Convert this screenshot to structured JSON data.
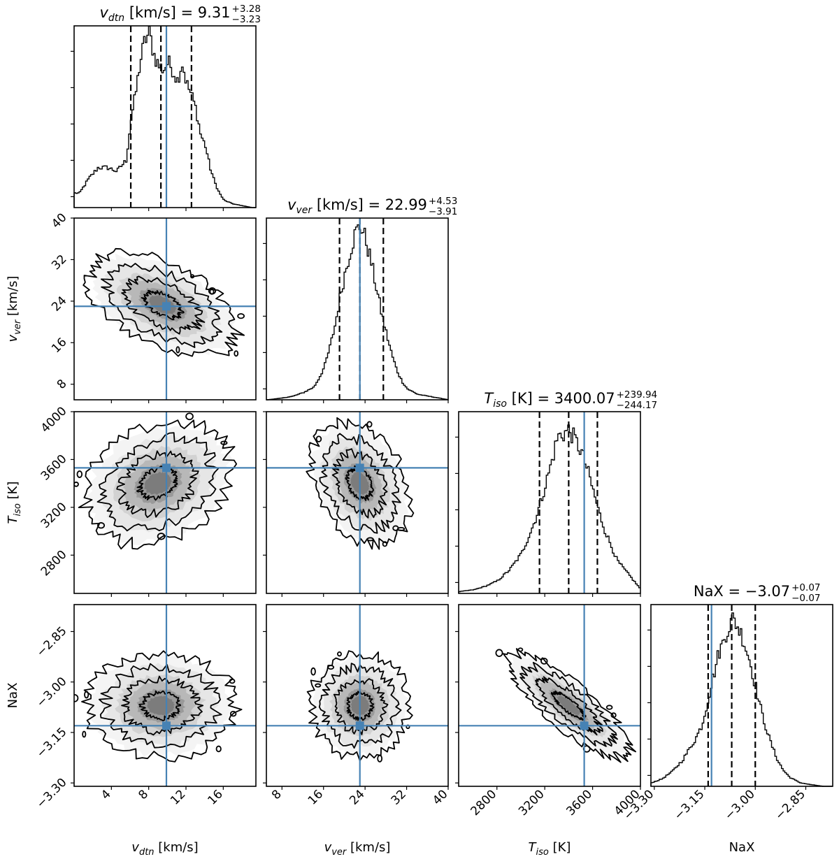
{
  "chart_data": {
    "type": "corner",
    "parameters": [
      {
        "key": "vdtn",
        "symbol": "v",
        "sub": "dtn",
        "unit": "[km/s]",
        "range": [
          0,
          19.5
        ],
        "ticks": [
          4,
          8,
          12,
          16
        ],
        "tick_labels": [
          "4",
          "8",
          "12",
          "16"
        ],
        "truth": 9.9,
        "median": 9.31,
        "upper_err": "+3.28",
        "lower_err": "−3.23",
        "median_str": "9.31",
        "q16": 6.08,
        "q50": 9.31,
        "q84": 12.59
      },
      {
        "key": "vver",
        "symbol": "v",
        "sub": "ver",
        "unit": "[km/s]",
        "range": [
          5,
          40
        ],
        "ticks": [
          8,
          16,
          24,
          32,
          40
        ],
        "tick_labels": [
          "8",
          "16",
          "24",
          "32",
          "40"
        ],
        "truth": 23.0,
        "median": 22.99,
        "upper_err": "+4.53",
        "lower_err": "−3.91",
        "median_str": "22.99",
        "q16": 19.08,
        "q50": 22.99,
        "q84": 27.52
      },
      {
        "key": "Tiso",
        "symbol": "T",
        "sub": "iso",
        "unit": "[K]",
        "range": [
          2480,
          4000
        ],
        "ticks": [
          2800,
          3200,
          3600,
          4000
        ],
        "tick_labels": [
          "2800",
          "3200",
          "3600",
          "4000"
        ],
        "truth": 3530,
        "median": 3400.07,
        "upper_err": "+239.94",
        "lower_err": "−244.17",
        "median_str": "3400.07",
        "q16": 3155.9,
        "q50": 3400.07,
        "q84": 3640.0
      },
      {
        "key": "NaX",
        "symbol": "NaX",
        "sub": "",
        "unit": "",
        "range": [
          -3.31,
          -2.77
        ],
        "ticks": [
          -3.3,
          -3.15,
          -3.0,
          -2.85
        ],
        "tick_labels": [
          "−3.30",
          "−3.15",
          "−3.00",
          "−2.85"
        ],
        "truth": -3.13,
        "median": -3.07,
        "upper_err": "+0.07",
        "lower_err": "−0.07",
        "median_str": "−3.07",
        "q16": -3.14,
        "q50": -3.07,
        "q84": -3.0
      }
    ],
    "titles": [
      "v_dtn [km/s] = 9.31 +3.28 −3.23",
      "v_ver [km/s] = 22.99 +4.53 −3.91",
      "T_iso [K] = 3400.07 +239.94 −244.17",
      "NaX = −3.07 +0.07 −0.07"
    ],
    "xlabels": [
      "v_dtn [km/s]",
      "v_ver [km/s]",
      "T_iso [K]",
      "NaX"
    ],
    "ylabels": [
      "v_ver [km/s]",
      "T_iso [K]",
      "NaX"
    ],
    "histograms": {
      "vdtn": {
        "x": [
          0.5,
          1.5,
          2.5,
          3.5,
          4.5,
          5.5,
          6.0,
          6.5,
          7.0,
          7.5,
          8.0,
          8.5,
          9.0,
          9.5,
          10.0,
          10.5,
          11.0,
          11.5,
          12.0,
          12.5,
          13.0,
          13.5,
          14.0,
          14.5,
          15.0,
          15.5,
          16.0,
          17.0,
          18.0,
          19.0
        ],
        "y": [
          0.08,
          0.16,
          0.22,
          0.22,
          0.2,
          0.26,
          0.48,
          0.62,
          0.8,
          0.92,
          0.96,
          0.84,
          0.78,
          0.76,
          0.8,
          0.76,
          0.7,
          0.8,
          0.68,
          0.62,
          0.54,
          0.4,
          0.34,
          0.22,
          0.14,
          0.08,
          0.04,
          0.02,
          0.01,
          0.0
        ]
      },
      "vver": {
        "x": [
          5,
          8,
          10,
          12,
          14,
          15,
          16,
          17,
          18,
          19,
          20,
          21,
          22,
          23,
          24,
          25,
          26,
          27,
          28,
          29,
          30,
          31,
          32,
          34,
          36,
          38,
          40
        ],
        "y": [
          0.0,
          0.01,
          0.02,
          0.04,
          0.07,
          0.12,
          0.18,
          0.28,
          0.4,
          0.56,
          0.7,
          0.82,
          0.92,
          0.96,
          0.88,
          0.76,
          0.62,
          0.48,
          0.36,
          0.25,
          0.16,
          0.1,
          0.06,
          0.03,
          0.02,
          0.01,
          0.0
        ]
      },
      "Tiso": {
        "x": [
          2480,
          2600,
          2700,
          2800,
          2900,
          3000,
          3050,
          3100,
          3150,
          3200,
          3250,
          3300,
          3350,
          3400,
          3450,
          3500,
          3550,
          3600,
          3650,
          3700,
          3750,
          3800,
          3850,
          3900,
          3950,
          4000
        ],
        "y": [
          0.01,
          0.02,
          0.04,
          0.07,
          0.13,
          0.22,
          0.3,
          0.38,
          0.48,
          0.6,
          0.72,
          0.86,
          0.88,
          0.9,
          0.84,
          0.78,
          0.68,
          0.56,
          0.44,
          0.34,
          0.26,
          0.18,
          0.14,
          0.1,
          0.06,
          0.02
        ]
      },
      "NaX": {
        "x": [
          -3.31,
          -3.28,
          -3.25,
          -3.22,
          -3.2,
          -3.18,
          -3.16,
          -3.15,
          -3.14,
          -3.13,
          -3.12,
          -3.11,
          -3.1,
          -3.09,
          -3.08,
          -3.07,
          -3.06,
          -3.05,
          -3.04,
          -3.03,
          -3.02,
          -3.01,
          -3.0,
          -2.99,
          -2.98,
          -2.96,
          -2.94,
          -2.92,
          -2.9,
          -2.87,
          -2.84,
          -2.8,
          -2.77
        ],
        "y": [
          0.02,
          0.04,
          0.08,
          0.14,
          0.2,
          0.26,
          0.34,
          0.42,
          0.5,
          0.58,
          0.66,
          0.74,
          0.78,
          0.84,
          0.88,
          0.92,
          0.9,
          0.86,
          0.82,
          0.76,
          0.7,
          0.62,
          0.54,
          0.46,
          0.38,
          0.26,
          0.16,
          0.09,
          0.05,
          0.02,
          0.01,
          0.0,
          0.0
        ]
      }
    },
    "joint_panels": [
      {
        "x": "vdtn",
        "y": "vver",
        "center": [
          9.5,
          23.3
        ],
        "sigma": [
          3.6,
          4.5
        ],
        "rho": -0.5
      },
      {
        "x": "vdtn",
        "y": "Tiso",
        "center": [
          9.0,
          3400
        ],
        "sigma": [
          3.6,
          230
        ],
        "rho": 0.25
      },
      {
        "x": "vver",
        "y": "Tiso",
        "center": [
          23.0,
          3400
        ],
        "sigma": [
          4.3,
          230
        ],
        "rho": -0.3
      },
      {
        "x": "vdtn",
        "y": "NaX",
        "center": [
          9.3,
          -3.07
        ],
        "sigma": [
          3.6,
          0.07
        ],
        "rho": 0.0
      },
      {
        "x": "vver",
        "y": "NaX",
        "center": [
          23.0,
          -3.07
        ],
        "sigma": [
          4.3,
          0.07
        ],
        "rho": 0.0
      },
      {
        "x": "Tiso",
        "y": "NaX",
        "center": [
          3400,
          -3.07
        ],
        "sigma": [
          230,
          0.07
        ],
        "rho": -0.82
      }
    ],
    "contour_levels_sigma": [
      0.5,
      1.0,
      1.5,
      2.0
    ],
    "truth_color": "#4682b4",
    "contour_color": "#000000"
  }
}
